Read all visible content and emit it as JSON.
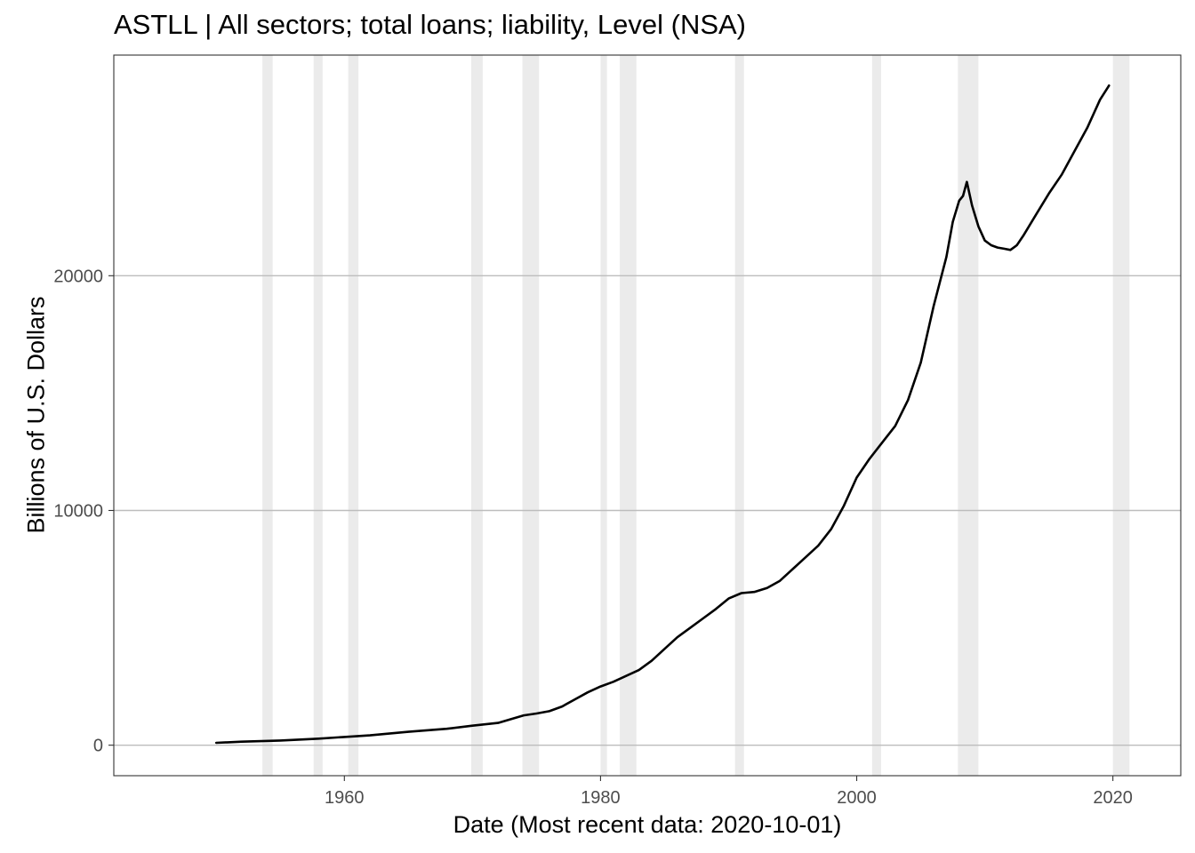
{
  "chart_data": {
    "type": "line",
    "title": "ASTLL | All sectors; total loans; liability, Level (NSA)",
    "xlabel": "Date (Most recent data: 2020-10-01)",
    "ylabel": "Billions of U.S. Dollars",
    "xlim": [
      1942.0,
      2025.3
    ],
    "ylim": [
      -1300,
      29400
    ],
    "x_ticks": [
      1960,
      1980,
      2000,
      2020
    ],
    "y_ticks": [
      0,
      10000,
      20000
    ],
    "grid": "horizontal major lines only",
    "recessions": [
      [
        1953.6,
        1954.4
      ],
      [
        1957.6,
        1958.3
      ],
      [
        1960.3,
        1961.1
      ],
      [
        1969.9,
        1970.8
      ],
      [
        1973.9,
        1975.2
      ],
      [
        1980.0,
        1980.5
      ],
      [
        1981.5,
        1982.8
      ],
      [
        1990.5,
        1991.2
      ],
      [
        2001.2,
        2001.9
      ],
      [
        2007.9,
        2009.5
      ],
      [
        2020.0,
        2021.3
      ]
    ],
    "series": [
      {
        "values": [
          [
            1950.0,
            100
          ],
          [
            1952.0,
            150
          ],
          [
            1955.0,
            200
          ],
          [
            1958.0,
            280
          ],
          [
            1960.0,
            350
          ],
          [
            1962.0,
            420
          ],
          [
            1965.0,
            570
          ],
          [
            1968.0,
            700
          ],
          [
            1970.0,
            830
          ],
          [
            1972.0,
            950
          ],
          [
            1974.0,
            1270
          ],
          [
            1975.0,
            1350
          ],
          [
            1976.0,
            1450
          ],
          [
            1977.0,
            1650
          ],
          [
            1978.0,
            1950
          ],
          [
            1979.0,
            2250
          ],
          [
            1980.0,
            2500
          ],
          [
            1981.0,
            2700
          ],
          [
            1982.0,
            2950
          ],
          [
            1983.0,
            3200
          ],
          [
            1984.0,
            3600
          ],
          [
            1985.0,
            4100
          ],
          [
            1986.0,
            4600
          ],
          [
            1987.0,
            5000
          ],
          [
            1988.0,
            5400
          ],
          [
            1989.0,
            5800
          ],
          [
            1990.0,
            6250
          ],
          [
            1991.0,
            6480
          ],
          [
            1992.0,
            6530
          ],
          [
            1993.0,
            6700
          ],
          [
            1994.0,
            7000
          ],
          [
            1995.0,
            7500
          ],
          [
            1996.0,
            8000
          ],
          [
            1997.0,
            8500
          ],
          [
            1998.0,
            9200
          ],
          [
            1999.0,
            10200
          ],
          [
            2000.0,
            11400
          ],
          [
            2001.0,
            12200
          ],
          [
            2002.0,
            12900
          ],
          [
            2003.0,
            13600
          ],
          [
            2004.0,
            14700
          ],
          [
            2005.0,
            16300
          ],
          [
            2006.0,
            18700
          ],
          [
            2007.0,
            20800
          ],
          [
            2007.5,
            22300
          ],
          [
            2008.0,
            23200
          ],
          [
            2008.3,
            23400
          ],
          [
            2008.6,
            24000
          ],
          [
            2009.0,
            23000
          ],
          [
            2009.5,
            22100
          ],
          [
            2010.0,
            21500
          ],
          [
            2010.5,
            21300
          ],
          [
            2011.0,
            21200
          ],
          [
            2011.5,
            21150
          ],
          [
            2012.0,
            21100
          ],
          [
            2012.5,
            21300
          ],
          [
            2013.0,
            21700
          ],
          [
            2014.0,
            22600
          ],
          [
            2015.0,
            23500
          ],
          [
            2016.0,
            24300
          ],
          [
            2017.0,
            25300
          ],
          [
            2018.0,
            26300
          ],
          [
            2019.0,
            27500
          ],
          [
            2019.7,
            28100
          ]
        ]
      }
    ]
  }
}
